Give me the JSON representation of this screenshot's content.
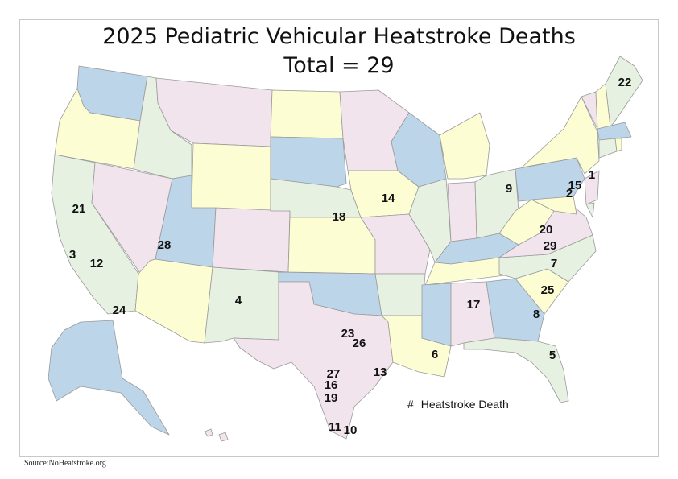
{
  "title_line1": "2025 Pediatric Vehicular Heatstroke Deaths",
  "title_line2": "Total = 29",
  "legend": {
    "symbol": "#",
    "label": "Heatstroke Death"
  },
  "source": "Source:NoHeatstroke.org",
  "colors": {
    "yellow": "#fdfdd4",
    "pink": "#f2e4ec",
    "green": "#e6f1e2",
    "blue": "#bcd5e8",
    "border": "#9a9a9a"
  },
  "deaths": [
    {
      "n": "1",
      "state": "New Jersey"
    },
    {
      "n": "2",
      "state": "Maryland"
    },
    {
      "n": "3",
      "state": "California"
    },
    {
      "n": "4",
      "state": "New Mexico"
    },
    {
      "n": "5",
      "state": "Florida"
    },
    {
      "n": "6",
      "state": "Louisiana"
    },
    {
      "n": "7",
      "state": "North Carolina"
    },
    {
      "n": "8",
      "state": "Georgia"
    },
    {
      "n": "9",
      "state": "Ohio"
    },
    {
      "n": "10",
      "state": "Texas"
    },
    {
      "n": "11",
      "state": "Texas"
    },
    {
      "n": "12",
      "state": "California"
    },
    {
      "n": "13",
      "state": "Texas"
    },
    {
      "n": "14",
      "state": "Iowa"
    },
    {
      "n": "15",
      "state": "New Jersey"
    },
    {
      "n": "16",
      "state": "Texas"
    },
    {
      "n": "17",
      "state": "Alabama"
    },
    {
      "n": "18",
      "state": "Nebraska"
    },
    {
      "n": "19",
      "state": "Texas"
    },
    {
      "n": "20",
      "state": "Virginia"
    },
    {
      "n": "21",
      "state": "California"
    },
    {
      "n": "22",
      "state": "Maine"
    },
    {
      "n": "23",
      "state": "Texas"
    },
    {
      "n": "24",
      "state": "California"
    },
    {
      "n": "25",
      "state": "South Carolina"
    },
    {
      "n": "26",
      "state": "Texas"
    },
    {
      "n": "27",
      "state": "Texas"
    },
    {
      "n": "28",
      "state": "Utah"
    },
    {
      "n": "29",
      "state": "North Carolina"
    }
  ]
}
